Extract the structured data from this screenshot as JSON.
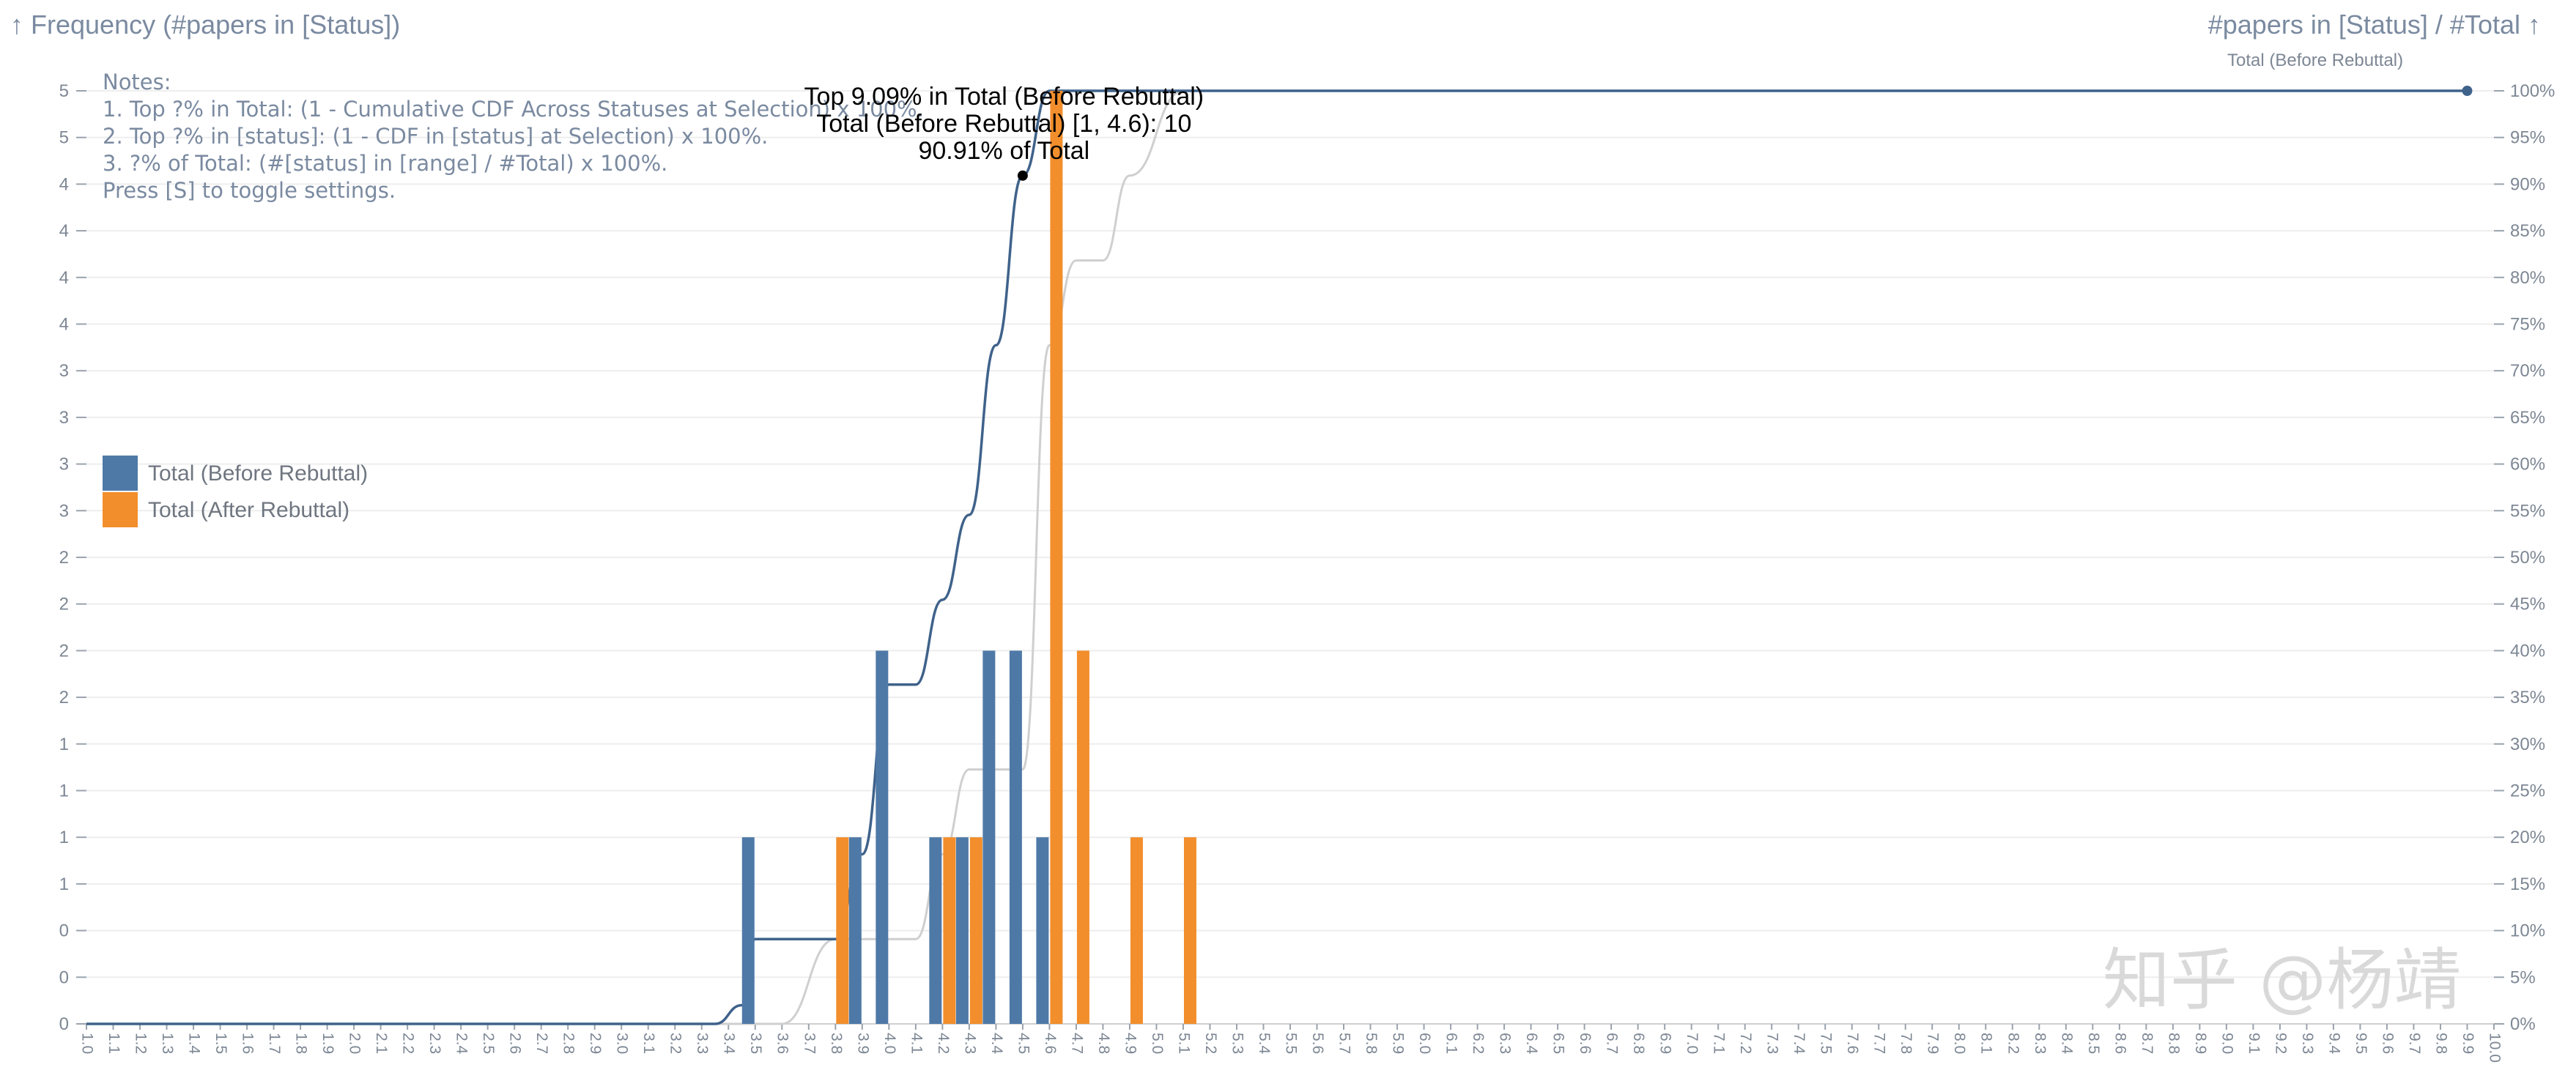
{
  "chart_data": {
    "type": "bar",
    "left_axis_title": "↑ Frequency (#papers in [Status])",
    "right_axis_title": "#papers in [Status] / #Total ↑",
    "top_right_series_label": "Total (Before Rebuttal)",
    "x": {
      "min": 1.0,
      "max": 10.0,
      "step": 0.1
    },
    "y_left": {
      "min": 0,
      "max": 5,
      "tick_step": 0.25,
      "tick_labels_rounded": true
    },
    "y_right": {
      "min": 0,
      "max": 100,
      "tick_step": 5,
      "unit": "%"
    },
    "grid": true,
    "series": [
      {
        "name": "Total (Before Rebuttal)",
        "color": "#4e79a7",
        "bars": [
          {
            "x": 3.5,
            "y": 1
          },
          {
            "x": 3.9,
            "y": 1
          },
          {
            "x": 4.0,
            "y": 2
          },
          {
            "x": 4.2,
            "y": 1
          },
          {
            "x": 4.3,
            "y": 1
          },
          {
            "x": 4.4,
            "y": 2
          },
          {
            "x": 4.5,
            "y": 2
          },
          {
            "x": 4.6,
            "y": 1
          }
        ],
        "cdf_percent": [
          {
            "x": 1.0,
            "y": 0
          },
          {
            "x": 3.35,
            "y": 0
          },
          {
            "x": 3.45,
            "y": 2
          },
          {
            "x": 3.5,
            "y": 9.09
          },
          {
            "x": 3.8,
            "y": 9.09
          },
          {
            "x": 3.9,
            "y": 18.18
          },
          {
            "x": 4.0,
            "y": 36.36
          },
          {
            "x": 4.1,
            "y": 36.36
          },
          {
            "x": 4.2,
            "y": 45.45
          },
          {
            "x": 4.3,
            "y": 54.55
          },
          {
            "x": 4.4,
            "y": 72.73
          },
          {
            "x": 4.5,
            "y": 90.91
          },
          {
            "x": 4.6,
            "y": 100
          },
          {
            "x": 9.9,
            "y": 100
          }
        ]
      },
      {
        "name": "Total (After Rebuttal)",
        "color": "#f28e2b",
        "bars": [
          {
            "x": 3.8,
            "y": 1
          },
          {
            "x": 4.2,
            "y": 1
          },
          {
            "x": 4.3,
            "y": 1
          },
          {
            "x": 4.6,
            "y": 5
          },
          {
            "x": 4.7,
            "y": 2
          },
          {
            "x": 4.9,
            "y": 1
          },
          {
            "x": 5.1,
            "y": 1
          }
        ],
        "cdf_percent": [
          {
            "x": 1.0,
            "y": 0
          },
          {
            "x": 3.6,
            "y": 0
          },
          {
            "x": 3.8,
            "y": 9.09
          },
          {
            "x": 4.1,
            "y": 9.09
          },
          {
            "x": 4.2,
            "y": 18.18
          },
          {
            "x": 4.3,
            "y": 27.27
          },
          {
            "x": 4.5,
            "y": 27.27
          },
          {
            "x": 4.6,
            "y": 72.73
          },
          {
            "x": 4.7,
            "y": 81.82
          },
          {
            "x": 4.8,
            "y": 81.82
          },
          {
            "x": 4.9,
            "y": 90.91
          },
          {
            "x": 5.1,
            "y": 100
          },
          {
            "x": 9.9,
            "y": 100
          }
        ]
      }
    ],
    "notes": [
      "Notes:",
      "1. Top ?% in Total: (1 - Cumulative CDF Across Statuses at Selection) x 100%.",
      "2. Top ?% in [status]: (1 - CDF in [status] at Selection) x 100%.",
      "3. ?% of Total: (#[status] in [range] / #Total) x 100%.",
      "Press [S] to toggle settings."
    ],
    "annotation": {
      "x": 4.5,
      "y_percent": 90.91,
      "lines": [
        "Top 9.09% in Total (Before Rebuttal)",
        "Total (Before Rebuttal) [1, 4.6): 10",
        "90.91% of Total"
      ]
    },
    "legend_position": "left-middle",
    "watermark": "知乎 @杨靖"
  }
}
